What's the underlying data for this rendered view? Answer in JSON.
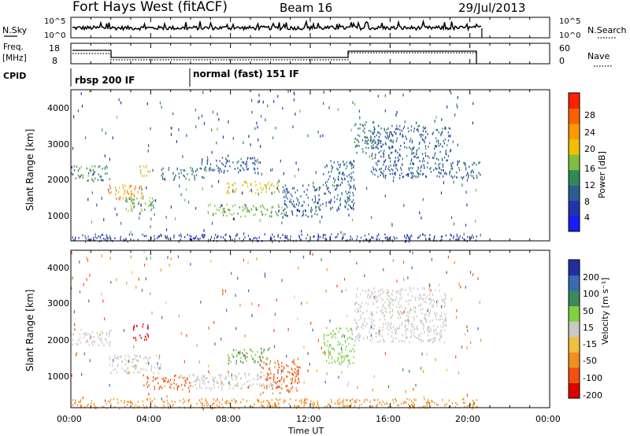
{
  "header": {
    "station": "Fort Hays West (fitACF)",
    "beam": "Beam 16",
    "date": "29/Jul/2013"
  },
  "nsky_panel": {
    "left_label": "N.Sky",
    "right_label": "N.Search",
    "left_ticks": [
      "10^5",
      "10^0"
    ],
    "right_ticks": [
      "10^5",
      "10^0"
    ]
  },
  "freq_panel": {
    "left_label_1": "Freq.",
    "left_label_2": "[MHz]",
    "right_label": "Nave",
    "left_ticks": [
      "18",
      "8"
    ],
    "right_ticks": [
      "60",
      "0"
    ]
  },
  "cpid": {
    "label": "CPID",
    "modes": [
      {
        "name": "rbsp 200 IF",
        "start_hour": 0
      },
      {
        "name": "normal (fast) 151 IF",
        "start_hour": 6
      }
    ]
  },
  "power_colorbar": {
    "title": "Power [dB]",
    "tick_labels": [
      "4",
      "8",
      "12",
      "16",
      "20",
      "24",
      "28"
    ],
    "colors": [
      "#1a1aff",
      "#2233aa",
      "#2a5f90",
      "#2e8b57",
      "#7fbf3f",
      "#f0c000",
      "#ff9900",
      "#ff6000",
      "#ff2000"
    ]
  },
  "velocity_colorbar": {
    "title": "Velocity [m s⁻¹]",
    "tick_labels": [
      "200",
      "100",
      "50",
      "15",
      "-15",
      "-50",
      "-100",
      "-200"
    ],
    "colors": [
      "#2030a0",
      "#3a6ab0",
      "#3a8a5a",
      "#80d040",
      "#c8c8c8",
      "#f0c040",
      "#f09020",
      "#f05010",
      "#e00000"
    ]
  },
  "axes": {
    "xlabel": "Time UT",
    "ylabel": "Slant Range [km]",
    "x_ticks": [
      "00:00",
      "04:00",
      "08:00",
      "12:00",
      "16:00",
      "20:00",
      "00:00"
    ],
    "y_ticks": [
      "1000",
      "2000",
      "3000",
      "4000"
    ]
  },
  "chart_data": [
    {
      "type": "heatmap",
      "title": "Power [dB]",
      "xlabel": "Time UT",
      "ylabel": "Slant Range [km]",
      "xlim_hours": [
        0,
        24
      ],
      "ylim_km": [
        180,
        4500
      ],
      "data_end_hour": 20.6,
      "echo_bands": [
        {
          "t": [
            0.0,
            2.0
          ],
          "r": [
            1900,
            2350
          ],
          "value": 12
        },
        {
          "t": [
            1.9,
            3.6
          ],
          "r": [
            1400,
            1800
          ],
          "value": 22
        },
        {
          "t": [
            2.3,
            4.2
          ],
          "r": [
            1050,
            1450
          ],
          "value": 14
        },
        {
          "t": [
            3.4,
            4.0
          ],
          "r": [
            2050,
            2350
          ],
          "value": 18
        },
        {
          "t": [
            4.5,
            6.8
          ],
          "r": [
            1950,
            2300
          ],
          "value": 10
        },
        {
          "t": [
            6.5,
            9.5
          ],
          "r": [
            2150,
            2600
          ],
          "value": 8
        },
        {
          "t": [
            7.8,
            10.5
          ],
          "r": [
            1550,
            1900
          ],
          "value": 18
        },
        {
          "t": [
            6.8,
            10.6
          ],
          "r": [
            900,
            1250
          ],
          "value": 14
        },
        {
          "t": [
            10.6,
            12.5
          ],
          "r": [
            900,
            1800
          ],
          "value": 8
        },
        {
          "t": [
            12.6,
            14.2
          ],
          "r": [
            1100,
            2500
          ],
          "value": 8
        },
        {
          "t": [
            14.2,
            15.2
          ],
          "r": [
            2700,
            3600
          ],
          "value": 10
        },
        {
          "t": [
            15.0,
            19.0
          ],
          "r": [
            2000,
            3500
          ],
          "value": 8
        },
        {
          "t": [
            19.0,
            20.6
          ],
          "r": [
            2000,
            2500
          ],
          "value": 8
        },
        {
          "t": [
            0.0,
            20.6
          ],
          "r": [
            190,
            400
          ],
          "value": 6
        }
      ]
    },
    {
      "type": "heatmap",
      "title": "Velocity [m s⁻¹]",
      "xlabel": "Time UT",
      "ylabel": "Slant Range [km]",
      "xlim_hours": [
        0,
        24
      ],
      "ylim_km": [
        180,
        4500
      ],
      "data_end_hour": 20.6,
      "echo_bands": [
        {
          "t": [
            0.0,
            2.0
          ],
          "r": [
            1900,
            2350
          ],
          "value": 0
        },
        {
          "t": [
            3.1,
            3.9
          ],
          "r": [
            2050,
            2500
          ],
          "value": -200
        },
        {
          "t": [
            1.9,
            4.5
          ],
          "r": [
            1150,
            1650
          ],
          "value": 0
        },
        {
          "t": [
            3.6,
            6.0
          ],
          "r": [
            700,
            1100
          ],
          "value": -80
        },
        {
          "t": [
            6.0,
            10.6
          ],
          "r": [
            700,
            1150
          ],
          "value": 0
        },
        {
          "t": [
            7.8,
            10.0
          ],
          "r": [
            1400,
            1850
          ],
          "value": 30
        },
        {
          "t": [
            9.5,
            11.5
          ],
          "r": [
            600,
            1500
          ],
          "value": -80
        },
        {
          "t": [
            14.2,
            18.8
          ],
          "r": [
            2000,
            3500
          ],
          "value": 0
        },
        {
          "t": [
            12.6,
            14.2
          ],
          "r": [
            1400,
            2400
          ],
          "value": 20
        },
        {
          "t": [
            0.0,
            20.6
          ],
          "r": [
            190,
            450
          ],
          "value": -60
        }
      ]
    }
  ]
}
